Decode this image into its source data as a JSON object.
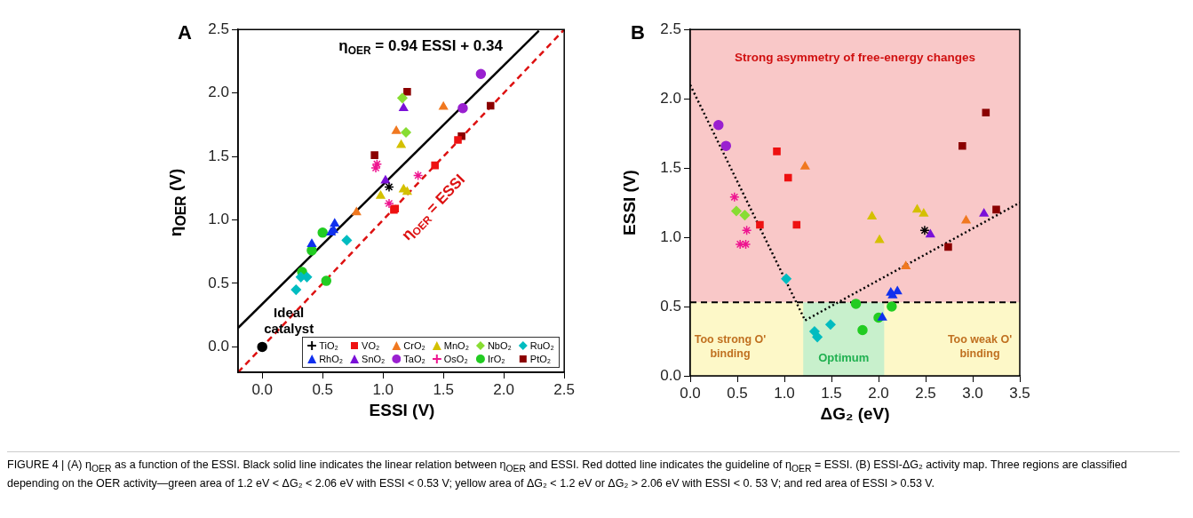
{
  "chart_data": [
    {
      "type": "scatter",
      "title": "A",
      "xlabel": "ESSI (V)",
      "ylabel": "η$_{OER}$ (V)",
      "legend": "bottom right",
      "xlim": [
        -0.2,
        2.5
      ],
      "xticks": [
        {
          "value": 0,
          "label": "0.0"
        },
        {
          "value": 0.5,
          "label": "0.5"
        },
        {
          "value": 1,
          "label": "1.0"
        },
        {
          "value": 1.5,
          "label": "1.5"
        },
        {
          "value": 2,
          "label": "2.0"
        },
        {
          "value": 2.5,
          "label": "2.5"
        }
      ],
      "ylim": [
        -0.2,
        2.5
      ],
      "yticks": [
        {
          "value": 0,
          "label": "0.0"
        },
        {
          "value": 0.5,
          "label": "0.5"
        },
        {
          "value": 1,
          "label": "1.0"
        },
        {
          "value": 1.5,
          "label": "1.5"
        },
        {
          "value": 2,
          "label": "2.0"
        },
        {
          "value": 2.5,
          "label": "2.5"
        }
      ],
      "annotations": [
        "η$_{OER}$ = 0.94 ESSI + 0.34",
        "η$_{OER}$ = ESSI",
        {
          "text": "Ideal catalyst",
          "x": 0,
          "y": 0
        }
      ],
      "series": [
        {
          "name": "TiO₂",
          "type": "scatter",
          "marker": "cross",
          "color": "#000000",
          "x": [
            1.05
          ],
          "values": [
            1.26
          ]
        },
        {
          "name": "VO₂",
          "type": "scatter",
          "marker": "square",
          "color": "#ee1111",
          "x": [
            1.09,
            1.1,
            1.43,
            1.62
          ],
          "values": [
            1.08,
            1.09,
            1.43,
            1.63
          ]
        },
        {
          "name": "CrO₂",
          "type": "scatter",
          "marker": "triangle",
          "color": "#f07820",
          "x": [
            1.11,
            1.5,
            0.78
          ],
          "values": [
            1.7,
            1.89,
            1.06
          ]
        },
        {
          "name": "MnO₂",
          "type": "scatter",
          "marker": "triangle",
          "color": "#d4c000",
          "x": [
            0.98,
            1.15,
            1.17,
            1.2
          ],
          "values": [
            1.19,
            1.59,
            1.24,
            1.22
          ]
        },
        {
          "name": "NbO₂",
          "type": "scatter",
          "marker": "diamond",
          "color": "#88dd33",
          "x": [
            1.19,
            1.16
          ],
          "values": [
            1.69,
            1.96
          ]
        },
        {
          "name": "RuO₂",
          "type": "scatter",
          "marker": "diamond",
          "color": "#00bcc0",
          "x": [
            0.28,
            0.32,
            0.37,
            0.7
          ],
          "values": [
            0.45,
            0.55,
            0.55,
            0.84
          ]
        },
        {
          "name": "RhO₂",
          "type": "scatter",
          "marker": "triangle",
          "color": "#1030ee",
          "x": [
            0.41,
            0.59,
            0.6,
            0.57
          ],
          "values": [
            0.81,
            0.92,
            0.97,
            0.9
          ]
        },
        {
          "name": "SnO₂",
          "type": "scatter",
          "marker": "triangle",
          "color": "#7a10d8",
          "x": [
            1.02,
            1.17
          ],
          "values": [
            1.31,
            1.88
          ]
        },
        {
          "name": "TaO₂",
          "type": "scatter",
          "marker": "circle",
          "color": "#9a20d0",
          "x": [
            1.66,
            1.81
          ],
          "values": [
            1.88,
            2.15
          ]
        },
        {
          "name": "OsO₂",
          "type": "scatter",
          "marker": "cross",
          "color": "#ee1590",
          "x": [
            0.95,
            0.94,
            1.05,
            1.29
          ],
          "values": [
            1.44,
            1.41,
            1.13,
            1.35
          ]
        },
        {
          "name": "IrO₂",
          "type": "scatter",
          "marker": "circle",
          "color": "#22cc22",
          "x": [
            0.53,
            0.33,
            0.5,
            0.41
          ],
          "values": [
            0.52,
            0.59,
            0.9,
            0.76
          ]
        },
        {
          "name": "PtO₂",
          "type": "scatter",
          "marker": "square",
          "color": "#8b0000",
          "x": [
            1.89,
            1.2,
            1.65,
            0.93
          ],
          "values": [
            1.9,
            2.01,
            1.66,
            1.51
          ]
        },
        {
          "type": "scatter",
          "marker": "circle",
          "color": "#000000",
          "x": [
            0
          ],
          "values": [
            0
          ]
        },
        {
          "type": "line",
          "marker": "none",
          "line_style": "solid",
          "color": "#000000",
          "x": [
            -0.2,
            2.29
          ],
          "values": [
            0.15,
            2.49
          ]
        },
        {
          "type": "line",
          "marker": "none",
          "line_style": "dashed",
          "color": "#dd1111",
          "x": [
            -0.2,
            2.5
          ],
          "values": [
            -0.2,
            2.5
          ]
        }
      ]
    },
    {
      "type": "scatter",
      "title": "B",
      "xlabel": "ΔG₂ (eV)",
      "ylabel": "ESSI (V)",
      "xlim": [
        0,
        3.5
      ],
      "xticks": [
        {
          "value": 0,
          "label": "0.0"
        },
        {
          "value": 0.5,
          "label": "0.5"
        },
        {
          "value": 1,
          "label": "1.0"
        },
        {
          "value": 1.5,
          "label": "1.5"
        },
        {
          "value": 2,
          "label": "2.0"
        },
        {
          "value": 2.5,
          "label": "2.5"
        },
        {
          "value": 3,
          "label": "3.0"
        },
        {
          "value": 3.5,
          "label": "3.5"
        }
      ],
      "ylim": [
        0,
        2.5
      ],
      "yticks": [
        {
          "value": 0,
          "label": "0.0"
        },
        {
          "value": 0.5,
          "label": "0.5"
        },
        {
          "value": 1,
          "label": "1.0"
        },
        {
          "value": 1.5,
          "label": "1.5"
        },
        {
          "value": 2,
          "label": "2.0"
        },
        {
          "value": 2.5,
          "label": "2.5"
        }
      ],
      "bands": [
        {
          "axis": "y",
          "from": 0,
          "to": 0.53,
          "color": "#fdf8c8"
        },
        {
          "axis": "x",
          "from": 1.2,
          "to": 2.06,
          "label": "Optimum",
          "color": "#c8f0cc"
        },
        {
          "axis": "y",
          "from": 0.53,
          "to": 2.5,
          "label": "Strong asymmetry of free-energy changes",
          "color": "#f9c8c8"
        }
      ],
      "ref_lines": [
        {
          "axis": "y",
          "value": 0.53,
          "color": "#000000",
          "line_style": "dashed"
        }
      ],
      "annotations": [
        "Too strong O' binding",
        "Too weak O' binding",
        "FIGURE 4 | (A) η$_{OER}$ as a function of the ESSI. Black solid line indicates the linear relation between η$_{OER}$ and ESSI. Red dotted line indicates the guideline of η$_{OER}$ = ESSI. (B) ESSI-ΔG₂ activity map. Three regions are classified depending on the OER activity—green area of 1.2 eV < ΔG₂ < 2.06 eV with ESSI < 0.53 V; yellow area of ΔG₂ < 1.2 eV or ΔG₂ > 2.06 eV with ESSI < 0. 53 V; and red area of ESSI > 0.53 V."
      ],
      "series": [
        {
          "type": "scatter",
          "marker": "cross",
          "color": "#000000",
          "x": [
            2.49
          ],
          "values": [
            1.05
          ]
        },
        {
          "type": "scatter",
          "marker": "square",
          "color": "#ee1111",
          "x": [
            0.74,
            1.13,
            1.04,
            0.92
          ],
          "values": [
            1.09,
            1.09,
            1.43,
            1.62
          ]
        },
        {
          "type": "scatter",
          "marker": "triangle",
          "color": "#f07820",
          "x": [
            1.22,
            2.29,
            2.93
          ],
          "values": [
            1.51,
            0.79,
            1.12
          ]
        },
        {
          "type": "scatter",
          "marker": "triangle",
          "color": "#d4c000",
          "x": [
            2.01,
            1.93,
            2.48,
            2.41
          ],
          "values": [
            0.98,
            1.15,
            1.17,
            1.2
          ]
        },
        {
          "type": "scatter",
          "marker": "diamond",
          "color": "#88dd33",
          "x": [
            0.49,
            0.58
          ],
          "values": [
            1.19,
            1.16
          ]
        },
        {
          "type": "scatter",
          "marker": "diamond",
          "color": "#00bcc0",
          "x": [
            1.35,
            1.32,
            1.02,
            1.49
          ],
          "values": [
            0.28,
            0.32,
            0.7,
            0.37
          ]
        },
        {
          "type": "scatter",
          "marker": "triangle",
          "color": "#1030ee",
          "x": [
            2.13,
            2.2,
            2.15,
            2.04
          ],
          "values": [
            0.6,
            0.61,
            0.58,
            0.42
          ]
        },
        {
          "type": "scatter",
          "marker": "triangle",
          "color": "#7a10d8",
          "x": [
            2.55,
            3.12
          ],
          "values": [
            1.02,
            1.17
          ]
        },
        {
          "type": "scatter",
          "marker": "circle",
          "color": "#9a20d0",
          "x": [
            0.38,
            0.3
          ],
          "values": [
            1.66,
            1.81
          ]
        },
        {
          "type": "scatter",
          "marker": "cross",
          "color": "#ee1590",
          "x": [
            0.6,
            0.53,
            0.59,
            0.47
          ],
          "values": [
            1.05,
            0.95,
            0.95,
            1.29
          ]
        },
        {
          "type": "scatter",
          "marker": "circle",
          "color": "#22cc22",
          "x": [
            1.76,
            1.83,
            2.14,
            2
          ],
          "values": [
            0.52,
            0.33,
            0.5,
            0.42
          ]
        },
        {
          "type": "scatter",
          "marker": "square",
          "color": "#8b0000",
          "x": [
            3.14,
            3.25,
            2.89,
            2.74
          ],
          "values": [
            1.9,
            1.2,
            1.66,
            0.93
          ]
        },
        {
          "type": "line",
          "marker": "none",
          "line_style": "dotted",
          "color": "#000000",
          "x": [
            0,
            1.22,
            3.5
          ],
          "values": [
            2.1,
            0.4,
            1.25
          ]
        }
      ]
    }
  ]
}
